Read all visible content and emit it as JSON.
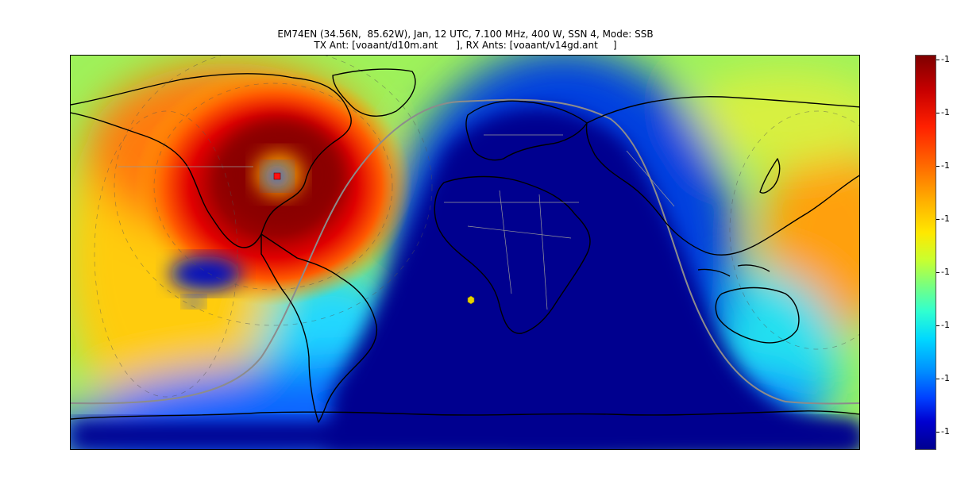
{
  "title": {
    "line1": "EM74EN (34.56N,  85.62W), Jan, 12 UTC, 7.100 MHz, 400 W, SSN 4, Mode: SSB",
    "line2": "TX Ant: [voaant/d10m.ant      ], RX Ants: [voaant/v14gd.ant     ]"
  },
  "colorbar": {
    "tick_labels": [
      "-1",
      "-1",
      "-1",
      "-1",
      "-1",
      "-1",
      "-1",
      "-1"
    ]
  },
  "colors": {
    "ocean_dark": "#00008f",
    "deep_red": "#7f0000",
    "terminator": "#8c8c8c",
    "coastline": "#000000",
    "borders": "#9a9a9a",
    "rx_marker": "#e6d200"
  },
  "map": {
    "grid_line": "terminator",
    "tx_site_marker": "red-square",
    "rx_site_marker": "yellow-hexagon"
  }
}
